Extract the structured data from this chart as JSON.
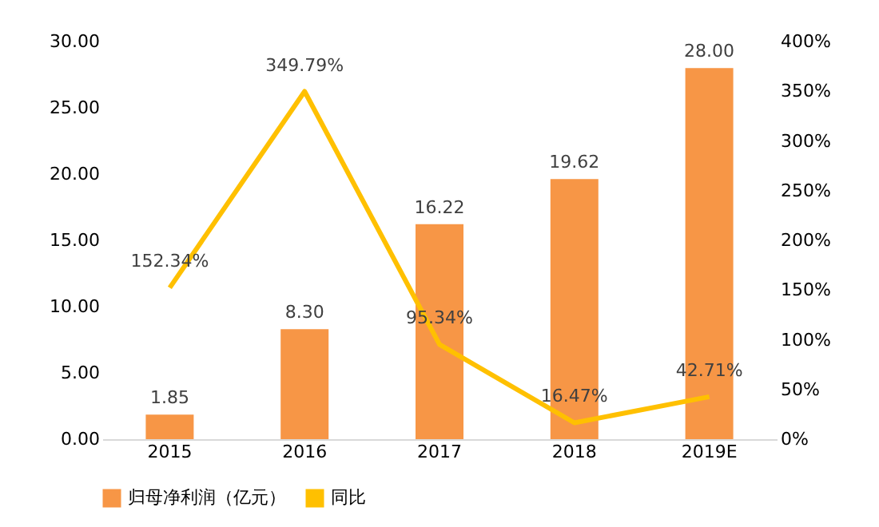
{
  "chart_data": {
    "type": "bar",
    "categories": [
      "2015",
      "2016",
      "2017",
      "2018",
      "2019E"
    ],
    "series": [
      {
        "name": "归母净利润（亿元）",
        "color": "#f79646",
        "values": [
          1.85,
          8.3,
          16.22,
          19.62,
          28.0
        ],
        "value_labels": [
          "1.85",
          "8.30",
          "16.22",
          "19.62",
          "28.00"
        ]
      },
      {
        "name": "同比",
        "type": "line",
        "axis": "y2",
        "color": "#ffc000",
        "values": [
          152.34,
          349.79,
          95.34,
          16.47,
          42.71
        ],
        "value_labels": [
          "152.34%",
          "349.79%",
          "95.34%",
          "16.47%",
          "42.71%"
        ]
      }
    ],
    "ylim": [
      0,
      30
    ],
    "yticks": [
      {
        "value": 0,
        "label": "0.00"
      },
      {
        "value": 5,
        "label": "5.00"
      },
      {
        "value": 10,
        "label": "10.00"
      },
      {
        "value": 15,
        "label": "15.00"
      },
      {
        "value": 20,
        "label": "20.00"
      },
      {
        "value": 25,
        "label": "25.00"
      },
      {
        "value": 30,
        "label": "30.00"
      }
    ],
    "y2lim": [
      0,
      400
    ],
    "y2ticks": [
      {
        "value": 0,
        "label": "0%"
      },
      {
        "value": 50,
        "label": "50%"
      },
      {
        "value": 100,
        "label": "100%"
      },
      {
        "value": 150,
        "label": "150%"
      },
      {
        "value": 200,
        "label": "200%"
      },
      {
        "value": 250,
        "label": "250%"
      },
      {
        "value": 300,
        "label": "300%"
      },
      {
        "value": 350,
        "label": "350%"
      },
      {
        "value": 400,
        "label": "400%"
      }
    ],
    "grid": false,
    "legend": "bottom",
    "marker": "none",
    "line_style": "solid"
  }
}
